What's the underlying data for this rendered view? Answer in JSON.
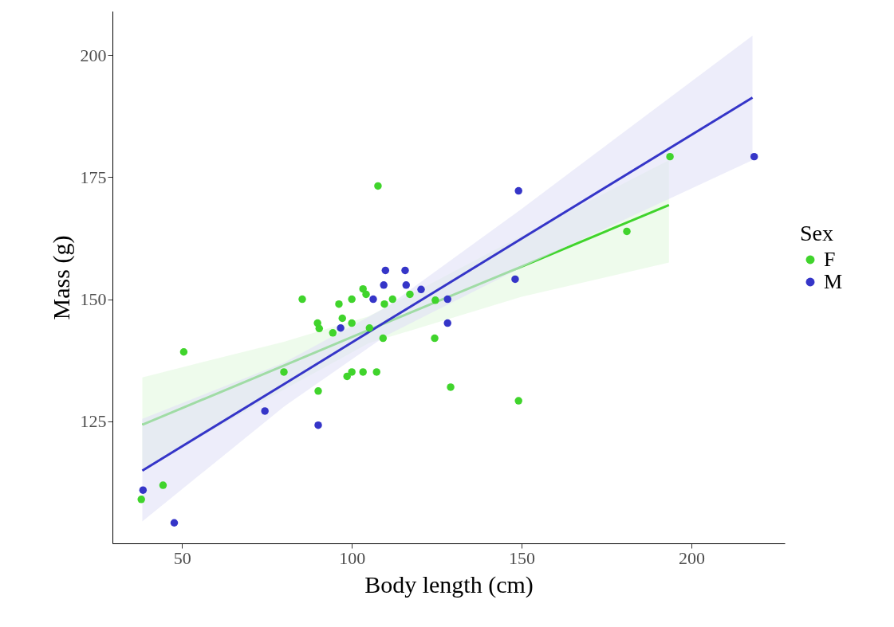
{
  "chart_data": {
    "type": "scatter",
    "xlabel": "Body length (cm)",
    "ylabel": "Mass (g)",
    "legend_title": "Sex",
    "legend": "right",
    "xlim": [
      29.5,
      227.5
    ],
    "ylim": [
      100,
      209
    ],
    "xticks": [
      50,
      100,
      150,
      200
    ],
    "yticks": [
      125,
      150,
      175,
      200
    ],
    "series": [
      {
        "type": "line",
        "marker": "none",
        "color": "#40d42c",
        "x": [
          38.3,
          80,
          105,
          150,
          193.4
        ],
        "values": [
          124.3,
          136.4,
          143.7,
          156.7,
          169.3
        ],
        "lower": [
          115,
          131.5,
          141,
          150.5,
          157.5
        ],
        "upper": [
          134,
          141.3,
          146.5,
          163,
          178.5
        ]
      },
      {
        "type": "line",
        "marker": "none",
        "color": "#3535c8",
        "x": [
          38.3,
          80,
          110,
          150,
          218
        ],
        "values": [
          114.9,
          132.6,
          145.4,
          162.4,
          191.3
        ],
        "lower": [
          104.5,
          128,
          142.5,
          156.5,
          178.5
        ],
        "upper": [
          125.5,
          137,
          148.3,
          168.5,
          204
        ]
      },
      {
        "name": "F",
        "marker": "circle",
        "color": "#40d42c",
        "x": [
          50.5,
          80,
          90.1,
          44.4,
          38,
          85.4,
          103.3,
          104.2,
          100,
          96.2,
          109.6,
          112,
          117.1,
          124.6,
          89.9,
          90.4,
          97.2,
          100,
          94.4,
          105.2,
          109.2,
          124.4,
          98.6,
          100,
          103.3,
          107.3,
          129.1,
          149.1,
          107.7,
          181,
          193.7
        ],
        "values": [
          139.2,
          135.1,
          131.2,
          111.9,
          109,
          150,
          152.1,
          151,
          150,
          149,
          149,
          150,
          151,
          149.8,
          145.1,
          144,
          146.1,
          145.1,
          143.1,
          144.1,
          142,
          142,
          134.2,
          135.1,
          135.1,
          135.1,
          132,
          129.2,
          173.2,
          163.9,
          179.2
        ]
      },
      {
        "name": "M",
        "marker": "circle",
        "color": "#3535c8",
        "x": [
          74.4,
          90.1,
          38.5,
          47.7,
          109.9,
          115.7,
          109.4,
          116,
          120.4,
          106.3,
          128.2,
          148.1,
          96.7,
          128.2,
          149.1,
          218.5
        ],
        "values": [
          127.1,
          124.2,
          110.9,
          104.2,
          155.9,
          155.9,
          152.9,
          152.9,
          152,
          150,
          150,
          154.1,
          144.1,
          145.1,
          172.2,
          179.2
        ]
      }
    ]
  }
}
